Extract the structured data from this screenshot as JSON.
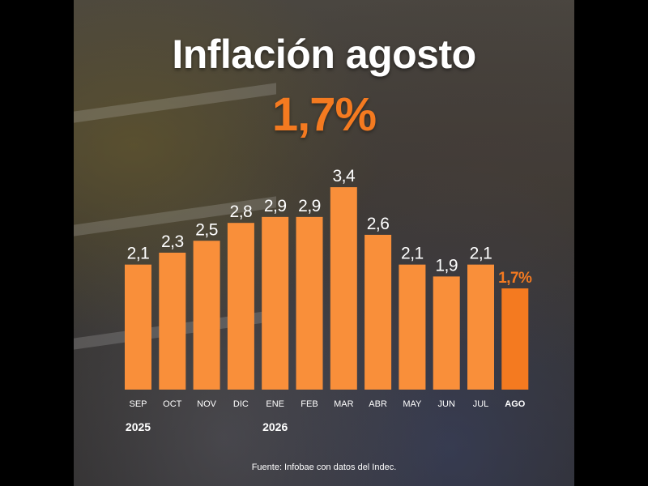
{
  "title": "Inflación agosto",
  "headline_value": "1,7%",
  "source": "Fuente: Infobae con datos del Indec.",
  "colors": {
    "bar": "#f98f3a",
    "highlight": "#f47a20",
    "text": "#ffffff"
  },
  "chart_data": {
    "type": "bar",
    "categories": [
      "SEP",
      "OCT",
      "NOV",
      "DIC",
      "ENE",
      "FEB",
      "MAR",
      "ABR",
      "MAY",
      "JUN",
      "JUL",
      "AGO"
    ],
    "values": [
      2.1,
      2.3,
      2.5,
      2.8,
      2.9,
      2.9,
      3.4,
      2.6,
      2.1,
      1.9,
      2.1,
      1.7
    ],
    "value_labels": [
      "2,1",
      "2,3",
      "2,5",
      "2,8",
      "2,9",
      "2,9",
      "3,4",
      "2,6",
      "2,1",
      "1,9",
      "2,1",
      "1,7%"
    ],
    "highlight_index": 11,
    "year_labels": [
      {
        "label": "2025",
        "category_index": 0
      },
      {
        "label": "2026",
        "category_index": 4
      }
    ],
    "title": "",
    "xlabel": "",
    "ylabel": "",
    "ylim": [
      0,
      4.35
    ],
    "grid": false
  }
}
